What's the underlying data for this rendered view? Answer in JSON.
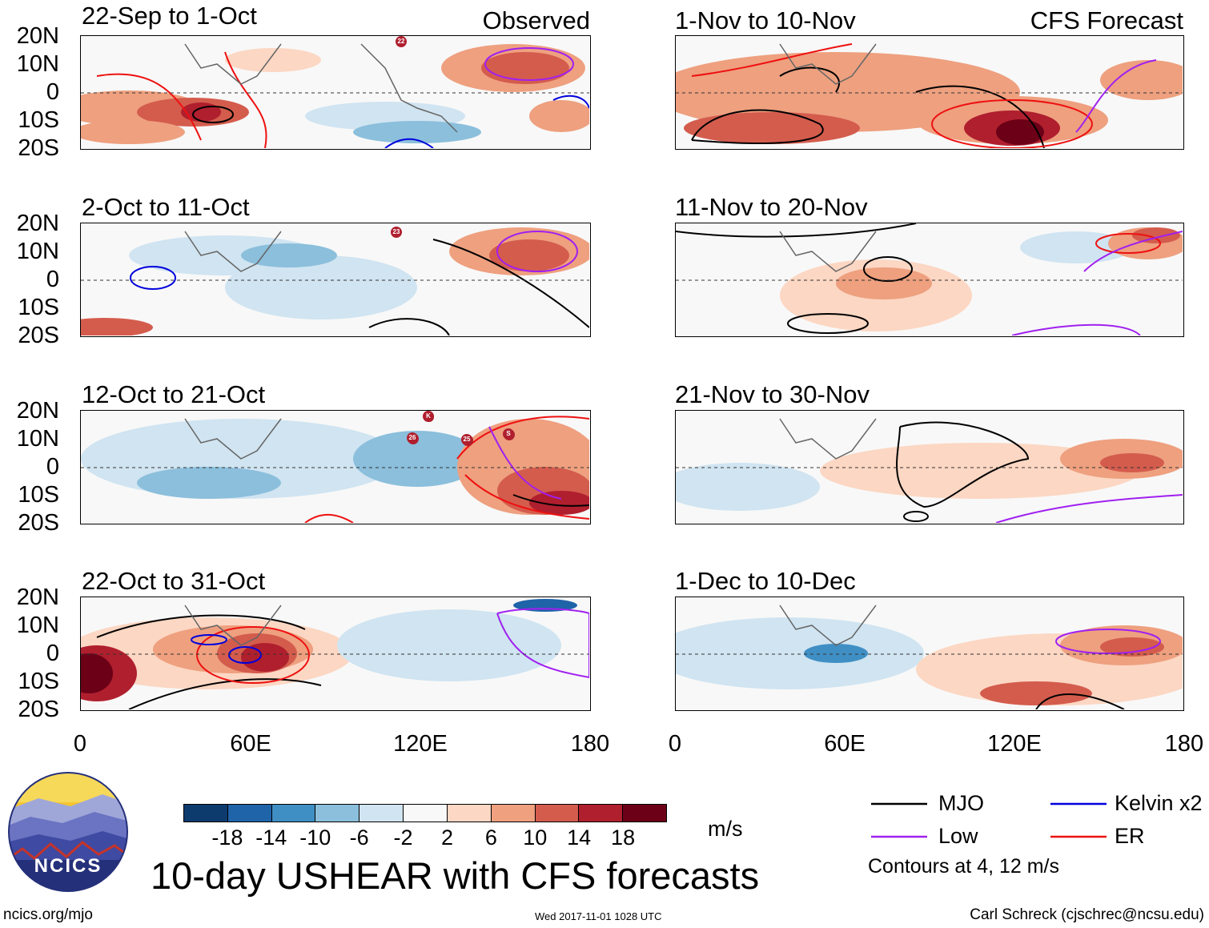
{
  "main_title": "10-day USHEAR with CFS forecasts",
  "observed_label": "Observed",
  "forecast_label": "CFS Forecast",
  "lat_ticks": [
    "20N",
    "10N",
    "0",
    "10S",
    "20S"
  ],
  "lon_ticks_left": [
    "0",
    "60E",
    "120E",
    "180"
  ],
  "lon_ticks_right": [
    "0",
    "60E",
    "120E",
    "180"
  ],
  "observed_panels": [
    {
      "title": "22-Sep to 1-Oct",
      "storms": [
        "22"
      ]
    },
    {
      "title": "2-Oct to 11-Oct",
      "storms": [
        "23"
      ]
    },
    {
      "title": "12-Oct to 21-Oct",
      "storms": [
        "K",
        "26",
        "25",
        "S"
      ]
    },
    {
      "title": "22-Oct to 31-Oct",
      "storms": []
    }
  ],
  "forecast_panels": [
    {
      "title": "1-Nov to 10-Nov"
    },
    {
      "title": "11-Nov to 20-Nov"
    },
    {
      "title": "21-Nov to 30-Nov"
    },
    {
      "title": "1-Dec to 10-Dec"
    }
  ],
  "colorbar": {
    "unit": "m/s",
    "ticks": [
      "-18",
      "-14",
      "-10",
      "-6",
      "-2",
      "2",
      "6",
      "10",
      "14",
      "18"
    ],
    "colors": [
      "#0d3b6e",
      "#1f63a8",
      "#3f8fc4",
      "#8bbfdc",
      "#d0e4f1",
      "#f8f8f8",
      "#fcd7c3",
      "#eea07f",
      "#d45c4d",
      "#b01f2e",
      "#6b0017"
    ]
  },
  "legend": {
    "mjo": "MJO",
    "kelvin": "Kelvin x2",
    "low": "Low",
    "er": "ER",
    "contours_note": "Contours at 4, 12 m/s",
    "colors": {
      "mjo": "#000000",
      "kelvin": "#0000dd",
      "low": "#a020f0",
      "er": "#ee1010"
    }
  },
  "logo_text": "NCICS",
  "footer": {
    "site": "ncics.org/mjo",
    "timestamp": "Wed 2017-11-01 1028 UTC",
    "credit": "Carl Schreck (cjschrec@ncsu.edu)"
  }
}
